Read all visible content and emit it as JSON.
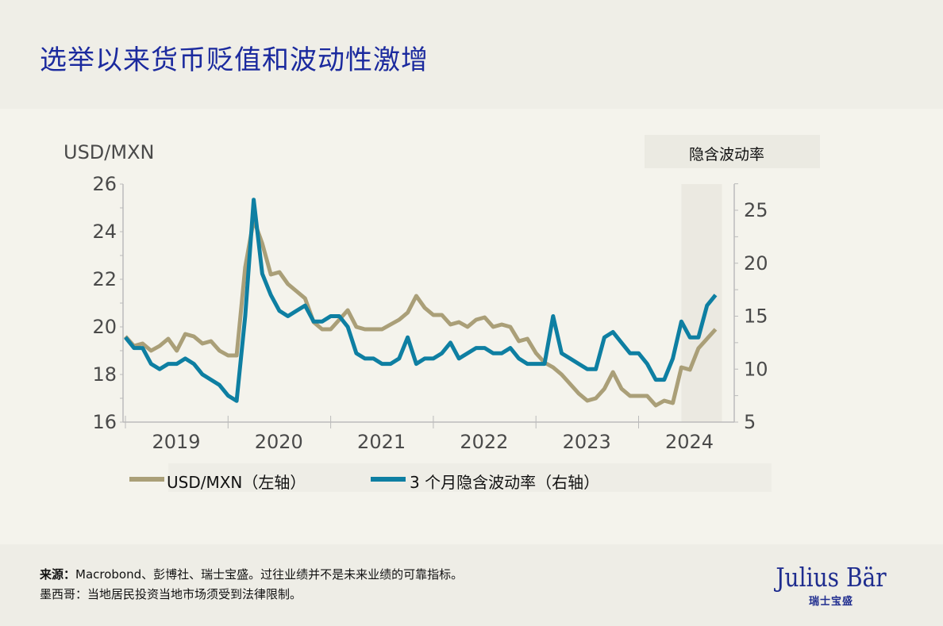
{
  "title": "选举以来货币贬值和波动性激增",
  "footer": {
    "source_label": "来源：",
    "source_text": "Macrobond、彭博社、瑞士宝盛。过往业绩并不是未来业绩的可靠指标。",
    "note_label": "墨西哥：",
    "note_text": "当地居民投资当地市场须受到法律限制。"
  },
  "logo": {
    "name": "Julius Bär",
    "subtitle": "瑞士宝盛"
  },
  "colors": {
    "usdmxn": "#aa9f78",
    "vol": "#0e7fa2",
    "title": "#1b2a9e",
    "shade": "#ebe9e1"
  },
  "chart_data": {
    "type": "line",
    "title": "",
    "ylabel_left": "USD/MXN",
    "ylabel_right": "隐含波动率",
    "ylim_left": [
      16,
      26
    ],
    "yticks_left": [
      16,
      18,
      20,
      22,
      24,
      26
    ],
    "ylim_right": [
      5,
      27
    ],
    "yticks_right": [
      5,
      10,
      15,
      20,
      25
    ],
    "xticks": [
      "2019",
      "2020",
      "2021",
      "2022",
      "2023",
      "2024"
    ],
    "shaded_period": [
      "2024-06",
      "2024-10"
    ],
    "grid": false,
    "legend_placement": "bottom",
    "x": [
      "2019-01",
      "2019-02",
      "2019-03",
      "2019-04",
      "2019-05",
      "2019-06",
      "2019-07",
      "2019-08",
      "2019-09",
      "2019-10",
      "2019-11",
      "2019-12",
      "2020-01",
      "2020-02",
      "2020-03",
      "2020-04",
      "2020-05",
      "2020-06",
      "2020-07",
      "2020-08",
      "2020-09",
      "2020-10",
      "2020-11",
      "2020-12",
      "2021-01",
      "2021-02",
      "2021-03",
      "2021-04",
      "2021-05",
      "2021-06",
      "2021-07",
      "2021-08",
      "2021-09",
      "2021-10",
      "2021-11",
      "2021-12",
      "2022-01",
      "2022-02",
      "2022-03",
      "2022-04",
      "2022-05",
      "2022-06",
      "2022-07",
      "2022-08",
      "2022-09",
      "2022-10",
      "2022-11",
      "2022-12",
      "2023-01",
      "2023-02",
      "2023-03",
      "2023-04",
      "2023-05",
      "2023-06",
      "2023-07",
      "2023-08",
      "2023-09",
      "2023-10",
      "2023-11",
      "2023-12",
      "2024-01",
      "2024-02",
      "2024-03",
      "2024-04",
      "2024-05",
      "2024-06",
      "2024-07",
      "2024-08",
      "2024-09",
      "2024-10"
    ],
    "series": [
      {
        "name": "USD/MXN（左轴）",
        "axis": "left",
        "values": [
          19.6,
          19.2,
          19.3,
          19.0,
          19.2,
          19.5,
          19.0,
          19.7,
          19.6,
          19.3,
          19.4,
          19.0,
          18.8,
          18.8,
          22.5,
          24.5,
          23.5,
          22.2,
          22.3,
          21.8,
          21.5,
          21.2,
          20.2,
          19.9,
          19.9,
          20.3,
          20.7,
          20.0,
          19.9,
          19.9,
          19.9,
          20.1,
          20.3,
          20.6,
          21.3,
          20.8,
          20.5,
          20.5,
          20.1,
          20.2,
          20.0,
          20.3,
          20.4,
          20.0,
          20.1,
          20.0,
          19.4,
          19.5,
          18.9,
          18.5,
          18.3,
          18.0,
          17.6,
          17.2,
          16.9,
          17.0,
          17.4,
          18.1,
          17.4,
          17.1,
          17.1,
          17.1,
          16.7,
          16.9,
          16.8,
          18.3,
          18.2,
          19.1,
          19.5,
          19.9
        ]
      },
      {
        "name": "3 个月隐含波动率（右轴）",
        "axis": "right",
        "values": [
          13.0,
          12.0,
          12.0,
          10.5,
          10.0,
          10.5,
          10.5,
          11.0,
          10.5,
          9.5,
          9.0,
          8.5,
          7.5,
          7.0,
          15.0,
          26.0,
          19.0,
          17.0,
          15.5,
          15.0,
          15.5,
          16.0,
          14.5,
          14.5,
          15.0,
          15.0,
          14.0,
          11.5,
          11.0,
          11.0,
          10.5,
          10.5,
          11.0,
          13.0,
          10.5,
          11.0,
          11.0,
          11.5,
          12.5,
          11.0,
          11.5,
          12.0,
          12.0,
          11.5,
          11.5,
          12.0,
          11.0,
          10.5,
          10.5,
          10.5,
          15.0,
          11.5,
          11.0,
          10.5,
          10.0,
          10.0,
          13.0,
          13.5,
          12.5,
          11.5,
          11.5,
          10.5,
          9.0,
          9.0,
          11.0,
          14.5,
          13.0,
          13.0,
          16.0,
          17.0
        ]
      }
    ]
  }
}
